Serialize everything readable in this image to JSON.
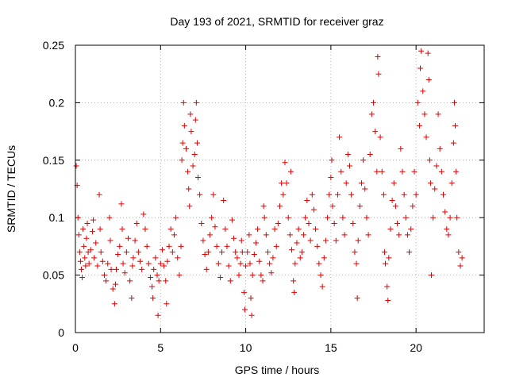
{
  "chart_data": {
    "type": "scatter",
    "title": "Day 193 of 2021, SRMTID for receiver graz",
    "xlabel": "GPS time / hours",
    "ylabel": "SRMTID / TECUs",
    "xlim": [
      0,
      24
    ],
    "ylim": [
      0,
      0.25
    ],
    "x_ticks": [
      0,
      5,
      10,
      15,
      20
    ],
    "x_tick_labels": [
      "0",
      "5",
      "10",
      "15",
      "20"
    ],
    "y_ticks": [
      0,
      0.05,
      0.1,
      0.15,
      0.2,
      0.25
    ],
    "y_tick_labels": [
      "0",
      "0.05",
      "0.1",
      "0.15",
      "0.2",
      "0.25"
    ],
    "grid": true,
    "marker": "+",
    "color": "#e00000",
    "series": [
      {
        "name": "SRMTID",
        "points": [
          [
            0.05,
            0.145
          ],
          [
            0.1,
            0.128
          ],
          [
            0.15,
            0.1
          ],
          [
            0.2,
            0.085
          ],
          [
            0.25,
            0.07
          ],
          [
            0.3,
            0.062
          ],
          [
            0.35,
            0.055
          ],
          [
            0.4,
            0.048
          ],
          [
            0.45,
            0.09
          ],
          [
            0.5,
            0.075
          ],
          [
            0.55,
            0.065
          ],
          [
            0.6,
            0.058
          ],
          [
            0.65,
            0.082
          ],
          [
            0.7,
            0.095
          ],
          [
            0.75,
            0.07
          ],
          [
            0.8,
            0.06
          ],
          [
            0.9,
            0.072
          ],
          [
            1.0,
            0.088
          ],
          [
            1.05,
            0.098
          ],
          [
            1.1,
            0.065
          ],
          [
            1.2,
            0.078
          ],
          [
            1.3,
            0.058
          ],
          [
            1.4,
            0.12
          ],
          [
            1.45,
            0.09
          ],
          [
            1.5,
            0.07
          ],
          [
            1.6,
            0.062
          ],
          [
            1.7,
            0.05
          ],
          [
            1.8,
            0.045
          ],
          [
            1.9,
            0.06
          ],
          [
            2.0,
            0.1
          ],
          [
            2.05,
            0.08
          ],
          [
            2.1,
            0.055
          ],
          [
            2.2,
            0.038
          ],
          [
            2.3,
            0.025
          ],
          [
            2.35,
            0.042
          ],
          [
            2.4,
            0.055
          ],
          [
            2.5,
            0.068
          ],
          [
            2.6,
            0.075
          ],
          [
            2.7,
            0.112
          ],
          [
            2.75,
            0.09
          ],
          [
            2.8,
            0.06
          ],
          [
            2.9,
            0.052
          ],
          [
            3.0,
            0.07
          ],
          [
            3.1,
            0.082
          ],
          [
            3.2,
            0.045
          ],
          [
            3.3,
            0.03
          ],
          [
            3.35,
            0.058
          ],
          [
            3.4,
            0.065
          ],
          [
            3.5,
            0.08
          ],
          [
            3.6,
            0.095
          ],
          [
            3.7,
            0.07
          ],
          [
            3.8,
            0.062
          ],
          [
            3.9,
            0.055
          ],
          [
            4.0,
            0.103
          ],
          [
            4.1,
            0.09
          ],
          [
            4.2,
            0.075
          ],
          [
            4.3,
            0.06
          ],
          [
            4.4,
            0.048
          ],
          [
            4.5,
            0.04
          ],
          [
            4.55,
            0.03
          ],
          [
            4.6,
            0.055
          ],
          [
            4.7,
            0.065
          ],
          [
            4.8,
            0.05
          ],
          [
            4.85,
            0.015
          ],
          [
            4.9,
            0.045
          ],
          [
            5.0,
            0.06
          ],
          [
            5.1,
            0.072
          ],
          [
            5.2,
            0.058
          ],
          [
            5.3,
            0.045
          ],
          [
            5.35,
            0.025
          ],
          [
            5.4,
            0.062
          ],
          [
            5.5,
            0.075
          ],
          [
            5.6,
            0.09
          ],
          [
            5.7,
            0.07
          ],
          [
            5.8,
            0.085
          ],
          [
            5.9,
            0.1
          ],
          [
            6.0,
            0.065
          ],
          [
            6.1,
            0.05
          ],
          [
            6.2,
            0.075
          ],
          [
            6.25,
            0.15
          ],
          [
            6.3,
            0.165
          ],
          [
            6.35,
            0.2
          ],
          [
            6.4,
            0.18
          ],
          [
            6.5,
            0.16
          ],
          [
            6.6,
            0.14
          ],
          [
            6.65,
            0.125
          ],
          [
            6.7,
            0.11
          ],
          [
            6.75,
            0.19
          ],
          [
            6.8,
            0.175
          ],
          [
            6.9,
            0.145
          ],
          [
            7.0,
            0.155
          ],
          [
            7.05,
            0.185
          ],
          [
            7.1,
            0.2
          ],
          [
            7.15,
            0.165
          ],
          [
            7.2,
            0.135
          ],
          [
            7.3,
            0.12
          ],
          [
            7.4,
            0.095
          ],
          [
            7.5,
            0.08
          ],
          [
            7.6,
            0.068
          ],
          [
            7.7,
            0.055
          ],
          [
            7.8,
            0.07
          ],
          [
            7.9,
            0.085
          ],
          [
            8.0,
            0.1
          ],
          [
            8.1,
            0.12
          ],
          [
            8.2,
            0.092
          ],
          [
            8.3,
            0.075
          ],
          [
            8.4,
            0.06
          ],
          [
            8.5,
            0.048
          ],
          [
            8.6,
            0.07
          ],
          [
            8.7,
            0.115
          ],
          [
            8.8,
            0.09
          ],
          [
            8.9,
            0.075
          ],
          [
            9.0,
            0.058
          ],
          [
            9.1,
            0.045
          ],
          [
            9.2,
            0.098
          ],
          [
            9.3,
            0.082
          ],
          [
            9.4,
            0.07
          ],
          [
            9.5,
            0.065
          ],
          [
            9.6,
            0.05
          ],
          [
            9.7,
            0.06
          ],
          [
            9.75,
            0.08
          ],
          [
            9.8,
            0.07
          ],
          [
            9.9,
            0.035
          ],
          [
            9.95,
            0.02
          ],
          [
            10.0,
            0.058
          ],
          [
            10.1,
            0.07
          ],
          [
            10.2,
            0.085
          ],
          [
            10.25,
            0.06
          ],
          [
            10.3,
            0.03
          ],
          [
            10.35,
            0.015
          ],
          [
            10.4,
            0.05
          ],
          [
            10.5,
            0.068
          ],
          [
            10.6,
            0.078
          ],
          [
            10.7,
            0.09
          ],
          [
            10.8,
            0.062
          ],
          [
            10.9,
            0.05
          ],
          [
            11.0,
            0.045
          ],
          [
            11.05,
            0.11
          ],
          [
            11.1,
            0.1
          ],
          [
            11.2,
            0.085
          ],
          [
            11.3,
            0.07
          ],
          [
            11.4,
            0.06
          ],
          [
            11.5,
            0.052
          ],
          [
            11.6,
            0.065
          ],
          [
            11.7,
            0.09
          ],
          [
            11.8,
            0.075
          ],
          [
            11.9,
            0.095
          ],
          [
            12.0,
            0.11
          ],
          [
            12.1,
            0.13
          ],
          [
            12.2,
            0.12
          ],
          [
            12.3,
            0.148
          ],
          [
            12.4,
            0.13
          ],
          [
            12.5,
            0.1
          ],
          [
            12.6,
            0.085
          ],
          [
            12.65,
            0.14
          ],
          [
            12.7,
            0.072
          ],
          [
            12.8,
            0.045
          ],
          [
            12.85,
            0.035
          ],
          [
            12.9,
            0.06
          ],
          [
            13.0,
            0.078
          ],
          [
            13.1,
            0.09
          ],
          [
            13.2,
            0.065
          ],
          [
            13.3,
            0.07
          ],
          [
            13.4,
            0.085
          ],
          [
            13.5,
            0.1
          ],
          [
            13.6,
            0.115
          ],
          [
            13.7,
            0.095
          ],
          [
            13.8,
            0.08
          ],
          [
            13.9,
            0.12
          ],
          [
            14.0,
            0.107
          ],
          [
            14.1,
            0.09
          ],
          [
            14.2,
            0.075
          ],
          [
            14.3,
            0.06
          ],
          [
            14.4,
            0.05
          ],
          [
            14.5,
            0.04
          ],
          [
            14.6,
            0.065
          ],
          [
            14.7,
            0.08
          ],
          [
            14.8,
            0.1
          ],
          [
            14.9,
            0.12
          ],
          [
            15.0,
            0.135
          ],
          [
            15.05,
            0.15
          ],
          [
            15.1,
            0.11
          ],
          [
            15.2,
            0.095
          ],
          [
            15.3,
            0.08
          ],
          [
            15.4,
            0.12
          ],
          [
            15.5,
            0.17
          ],
          [
            15.6,
            0.14
          ],
          [
            15.7,
            0.1
          ],
          [
            15.8,
            0.085
          ],
          [
            15.9,
            0.13
          ],
          [
            16.0,
            0.155
          ],
          [
            16.1,
            0.145
          ],
          [
            16.2,
            0.12
          ],
          [
            16.3,
            0.095
          ],
          [
            16.4,
            0.07
          ],
          [
            16.5,
            0.06
          ],
          [
            16.55,
            0.03
          ],
          [
            16.6,
            0.08
          ],
          [
            16.7,
            0.11
          ],
          [
            16.8,
            0.13
          ],
          [
            16.9,
            0.15
          ],
          [
            17.0,
            0.125
          ],
          [
            17.1,
            0.1
          ],
          [
            17.2,
            0.085
          ],
          [
            17.3,
            0.155
          ],
          [
            17.4,
            0.19
          ],
          [
            17.5,
            0.2
          ],
          [
            17.6,
            0.175
          ],
          [
            17.7,
            0.14
          ],
          [
            17.75,
            0.24
          ],
          [
            17.8,
            0.225
          ],
          [
            17.9,
            0.17
          ],
          [
            18.0,
            0.14
          ],
          [
            18.1,
            0.12
          ],
          [
            18.15,
            0.07
          ],
          [
            18.2,
            0.06
          ],
          [
            18.3,
            0.04
          ],
          [
            18.35,
            0.028
          ],
          [
            18.4,
            0.065
          ],
          [
            18.5,
            0.09
          ],
          [
            18.6,
            0.115
          ],
          [
            18.7,
            0.13
          ],
          [
            18.8,
            0.11
          ],
          [
            18.9,
            0.095
          ],
          [
            19.0,
            0.085
          ],
          [
            19.1,
            0.16
          ],
          [
            19.2,
            0.14
          ],
          [
            19.3,
            0.12
          ],
          [
            19.4,
            0.1
          ],
          [
            19.5,
            0.085
          ],
          [
            19.6,
            0.07
          ],
          [
            19.7,
            0.09
          ],
          [
            19.8,
            0.11
          ],
          [
            19.9,
            0.14
          ],
          [
            20.0,
            0.12
          ],
          [
            20.1,
            0.2
          ],
          [
            20.2,
            0.18
          ],
          [
            20.25,
            0.23
          ],
          [
            20.3,
            0.245
          ],
          [
            20.4,
            0.21
          ],
          [
            20.5,
            0.19
          ],
          [
            20.6,
            0.17
          ],
          [
            20.7,
            0.243
          ],
          [
            20.75,
            0.22
          ],
          [
            20.8,
            0.15
          ],
          [
            20.85,
            0.13
          ],
          [
            20.9,
            0.05
          ],
          [
            21.0,
            0.1
          ],
          [
            21.1,
            0.125
          ],
          [
            21.2,
            0.145
          ],
          [
            21.3,
            0.19
          ],
          [
            21.4,
            0.16
          ],
          [
            21.5,
            0.14
          ],
          [
            21.6,
            0.12
          ],
          [
            21.7,
            0.105
          ],
          [
            21.8,
            0.09
          ],
          [
            21.9,
            0.085
          ],
          [
            22.0,
            0.1
          ],
          [
            22.1,
            0.13
          ],
          [
            22.2,
            0.165
          ],
          [
            22.25,
            0.2
          ],
          [
            22.3,
            0.18
          ],
          [
            22.35,
            0.14
          ],
          [
            22.4,
            0.1
          ],
          [
            22.5,
            0.07
          ],
          [
            22.6,
            0.058
          ],
          [
            22.7,
            0.065
          ]
        ]
      }
    ]
  }
}
